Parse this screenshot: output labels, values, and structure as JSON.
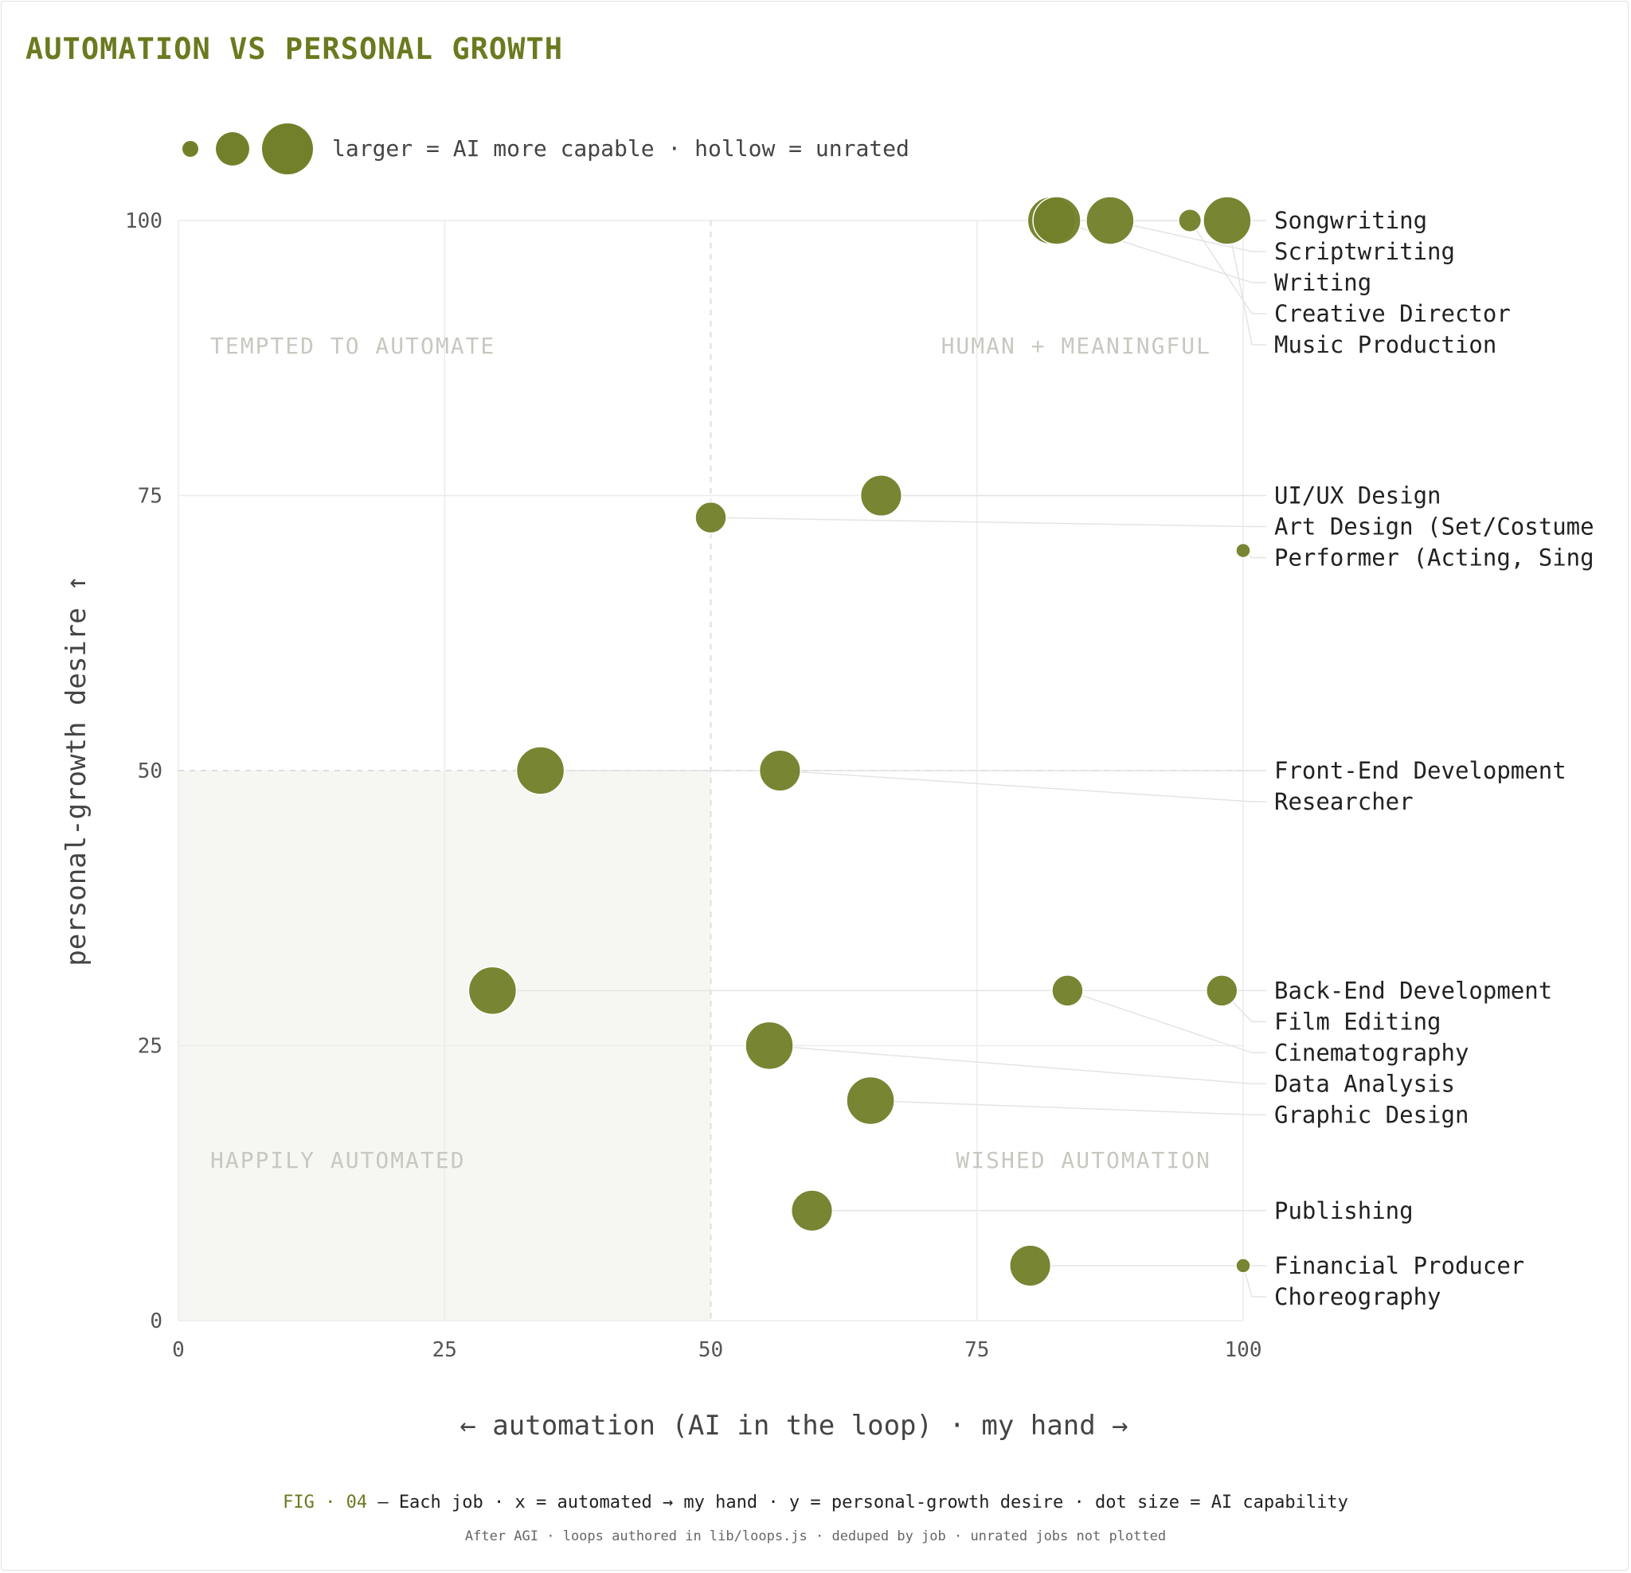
{
  "title": "AUTOMATION VS PERSONAL GROWTH",
  "size_legend": {
    "text": "larger = AI more capable · hollow = unrated",
    "sizes": [
      "small",
      "medium",
      "large"
    ]
  },
  "colors": {
    "accent": "#6b7a1f",
    "dot": "#73802a",
    "grid": "#ececec",
    "quadrant_text": "#c8c8c0",
    "shade": "#f6f6f2",
    "label": "#222222"
  },
  "quadrants": {
    "top_left": "TEMPTED TO AUTOMATE",
    "top_right": "HUMAN + MEANINGFUL",
    "bottom_left": "HAPPILY AUTOMATED",
    "bottom_right": "WISHED AUTOMATION"
  },
  "caption": {
    "fig": "FIG · 04",
    "text": " — Each job · x = automated → my hand · y = personal-growth desire · dot size = AI capability",
    "sub": "After AGI · loops authored in lib/loops.js · deduped by job · unrated jobs not plotted"
  },
  "chart_data": {
    "type": "scatter",
    "title": "AUTOMATION VS PERSONAL GROWTH",
    "xlabel": "← automation (AI in the loop) · my hand →",
    "ylabel": "personal-growth desire ↑",
    "xlim": [
      0,
      100
    ],
    "ylim": [
      0,
      100
    ],
    "x_ticks": [
      "0",
      "25",
      "50",
      "75",
      "100"
    ],
    "y_ticks": [
      "0",
      "25",
      "50",
      "75",
      "100"
    ],
    "grid": true,
    "midlines": {
      "x": 50,
      "y": 50
    },
    "shaded_region": "bottom-left",
    "size_encoding": "AI capability",
    "points": [
      {
        "label": "Songwriting",
        "x": 82,
        "y": 100,
        "size": 3
      },
      {
        "label": "Scriptwriting",
        "x": 87.5,
        "y": 100,
        "size": 3
      },
      {
        "label": "Writing",
        "x": 82.5,
        "y": 100,
        "size": 3
      },
      {
        "label": "Creative Director",
        "x": 95,
        "y": 100,
        "size": 1.5
      },
      {
        "label": "Music Production",
        "x": 98.5,
        "y": 100,
        "size": 3
      },
      {
        "label": "UI/UX Design",
        "x": 66,
        "y": 75,
        "size": 2.6
      },
      {
        "label": "Art Design (Set/Costume",
        "x": 50,
        "y": 73,
        "size": 2
      },
      {
        "label": "Performer (Acting, Sing",
        "x": 100,
        "y": 70,
        "size": 1
      },
      {
        "label": "Front-End Development",
        "x": 34,
        "y": 50,
        "size": 3
      },
      {
        "label": "Researcher",
        "x": 56.5,
        "y": 50,
        "size": 2.6
      },
      {
        "label": "Back-End Development",
        "x": 29.5,
        "y": 30,
        "size": 3
      },
      {
        "label": "Film Editing",
        "x": 98,
        "y": 30,
        "size": 2
      },
      {
        "label": "Cinematography",
        "x": 83.5,
        "y": 30,
        "size": 2
      },
      {
        "label": "Data Analysis",
        "x": 55.5,
        "y": 25,
        "size": 3
      },
      {
        "label": "Graphic Design",
        "x": 65,
        "y": 20,
        "size": 3
      },
      {
        "label": "Publishing",
        "x": 59.5,
        "y": 10,
        "size": 2.6
      },
      {
        "label": "Financial Producer",
        "x": 80,
        "y": 5,
        "size": 2.6
      },
      {
        "label": "Choreography",
        "x": 100,
        "y": 5,
        "size": 1
      }
    ]
  }
}
